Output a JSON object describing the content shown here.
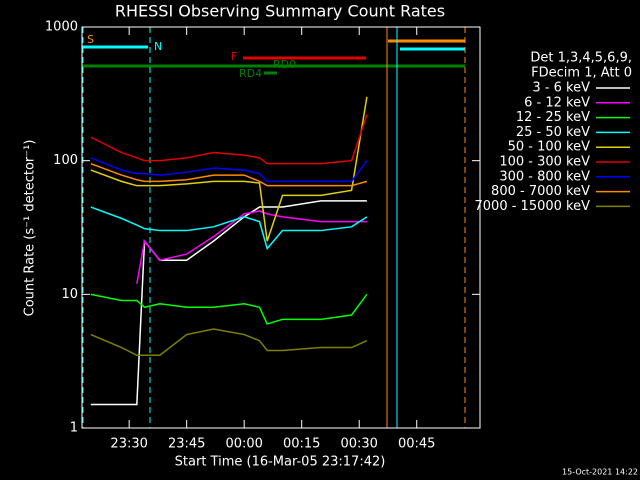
{
  "chart_data": {
    "type": "line",
    "title": "RHESSI Observing Summary Count Rates",
    "x_label": "Start Time (16-Mar-05 23:17:42)",
    "y_label": "Count Rate (s⁻¹ detector⁻¹)",
    "footer": "15-Oct-2021 14:22",
    "legend_title": [
      "Det 1,3,4,5,6,9,",
      "FDecim 1, Att 0"
    ],
    "annotations": [
      "S",
      "N",
      "F",
      "RD0",
      "RD4"
    ],
    "log_y": true,
    "xlim": [
      17.7,
      121.5
    ],
    "ylim": [
      1,
      1000
    ],
    "yticks": [
      1,
      10,
      100,
      1000
    ],
    "xticks": [
      {
        "value": 30,
        "label": "23:30"
      },
      {
        "value": 45,
        "label": "23:45"
      },
      {
        "value": 60,
        "label": "00:00"
      },
      {
        "value": 75,
        "label": "00:15"
      },
      {
        "value": 90,
        "label": "00:30"
      },
      {
        "value": 105,
        "label": "00:45"
      }
    ],
    "x": [
      20,
      28,
      32,
      34,
      38,
      45,
      52,
      60,
      64,
      66,
      70,
      80,
      88,
      92
    ],
    "series": [
      {
        "name": "3 - 6 keV",
        "color": "#ffffff",
        "values": [
          1.5,
          1.5,
          1.5,
          25,
          18,
          18,
          25,
          38,
          45,
          45,
          45,
          50,
          50,
          50
        ]
      },
      {
        "name": "6 - 12 keV",
        "color": "#ff00ff",
        "values": [
          null,
          null,
          12,
          25,
          18,
          20,
          27,
          40,
          42,
          40,
          38,
          35,
          35,
          35
        ]
      },
      {
        "name": "12 - 25 keV",
        "color": "#00ff00",
        "values": [
          10,
          9,
          9,
          8,
          8.5,
          8,
          8,
          8.5,
          8,
          6,
          6.5,
          6.5,
          7,
          10
        ]
      },
      {
        "name": "25 - 50 keV",
        "color": "#00ffff",
        "values": [
          45,
          37,
          33,
          31,
          30,
          30,
          32,
          38,
          35,
          22,
          30,
          30,
          32,
          38
        ]
      },
      {
        "name": "50 - 100 keV",
        "color": "#e0d000",
        "values": [
          85,
          70,
          65,
          65,
          65,
          67,
          70,
          70,
          68,
          25,
          55,
          55,
          60,
          300
        ]
      },
      {
        "name": "100 - 300 keV",
        "color": "#e00000",
        "values": [
          150,
          115,
          105,
          100,
          100,
          105,
          115,
          110,
          105,
          95,
          95,
          95,
          100,
          220
        ]
      },
      {
        "name": "300 - 800 keV",
        "color": "#0000ff",
        "values": [
          105,
          85,
          80,
          80,
          78,
          82,
          88,
          85,
          80,
          70,
          70,
          70,
          70,
          100
        ]
      },
      {
        "name": "800 - 7000 keV",
        "color": "#ff8c00",
        "values": [
          95,
          78,
          72,
          70,
          70,
          72,
          78,
          78,
          70,
          65,
          65,
          65,
          65,
          70
        ]
      },
      {
        "name": "7000 - 15000 keV",
        "color": "#808000",
        "values": [
          5,
          4,
          3.5,
          3.5,
          3.5,
          5,
          5.5,
          5,
          4.5,
          3.8,
          3.8,
          4,
          4,
          4.5
        ]
      }
    ]
  }
}
